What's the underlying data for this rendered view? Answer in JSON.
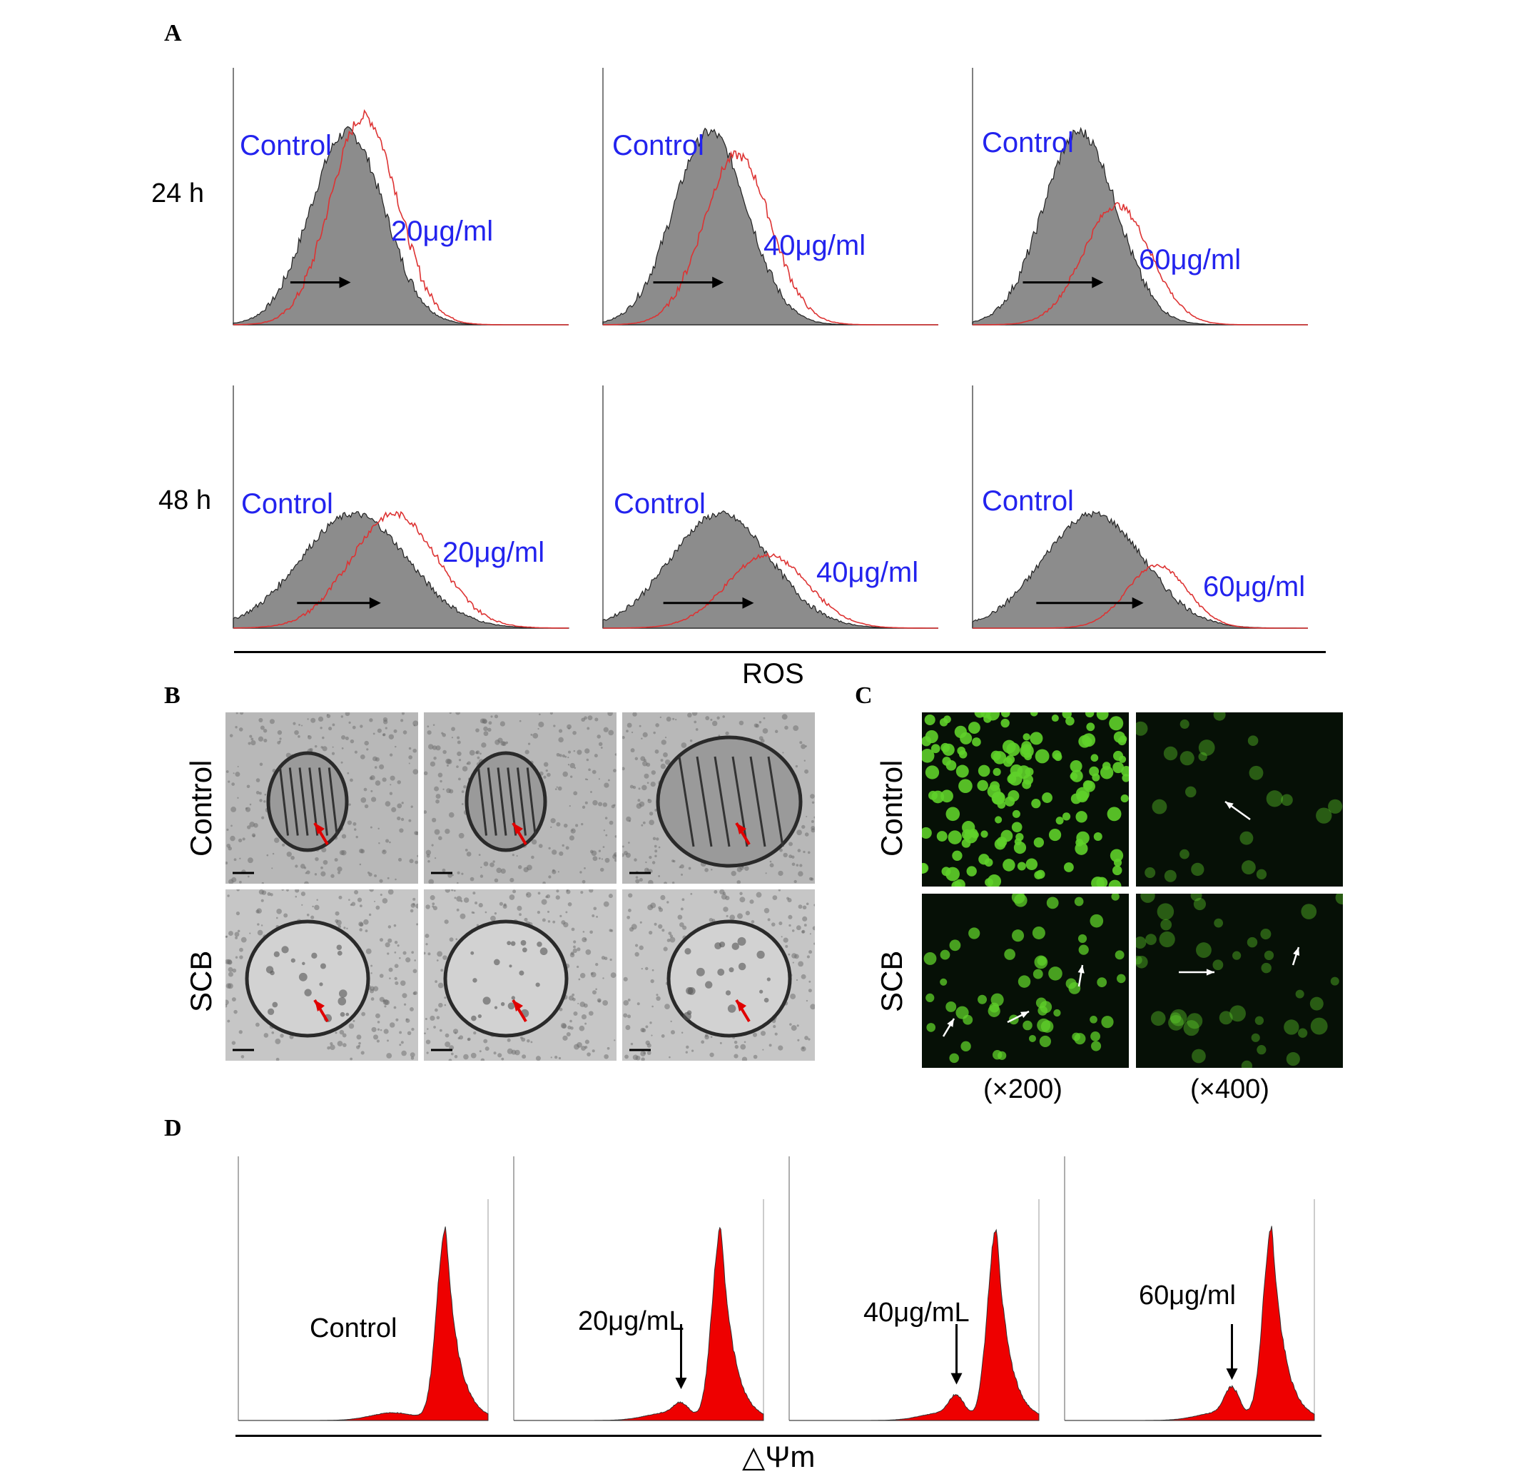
{
  "panel_labels": {
    "a": "A",
    "b": "B",
    "c": "C",
    "d": "D"
  },
  "panel_a": {
    "row_labels": [
      "24 h",
      "48 h"
    ],
    "control_label": "Control",
    "doses": [
      "20μg/ml",
      "40μg/ml",
      "60μg/ml"
    ],
    "axis_label": "ROS"
  },
  "panel_b": {
    "row_labels": [
      "Control",
      "SCB"
    ]
  },
  "panel_c": {
    "row_labels": [
      "Control",
      "SCB"
    ],
    "magnifications": [
      "(×200)",
      "(×400)"
    ]
  },
  "panel_d": {
    "labels": [
      "Control",
      "20μg/mL",
      "40μg/mL",
      "60μg/ml"
    ],
    "axis_label": "△Ψm"
  },
  "colors": {
    "dose_text": "#2323ee",
    "treated_curve": "#d33",
    "control_fill": "#8c8c8c",
    "jc1_fill": "#ee0000",
    "tem_arrow": "#e00000",
    "fluor_cells": "#5fd02a"
  },
  "chart_data": [
    {
      "type": "area",
      "panel": "A",
      "time": "24 h",
      "series": [
        {
          "name": "Control",
          "peak_x": 0.34,
          "spread": 0.11
        },
        {
          "name": "20μg/ml",
          "peak_x": 0.39,
          "spread": 0.1
        }
      ]
    },
    {
      "type": "area",
      "panel": "A",
      "time": "24 h",
      "series": [
        {
          "name": "Control",
          "peak_x": 0.32,
          "spread": 0.11
        },
        {
          "name": "40μg/ml",
          "peak_x": 0.4,
          "spread": 0.1
        }
      ]
    },
    {
      "type": "area",
      "panel": "A",
      "time": "24 h",
      "series": [
        {
          "name": "Control",
          "peak_x": 0.32,
          "spread": 0.11
        },
        {
          "name": "60μg/ml",
          "peak_x": 0.43,
          "spread": 0.1
        }
      ]
    },
    {
      "type": "area",
      "panel": "A",
      "time": "48 h",
      "series": [
        {
          "name": "Control",
          "peak_x": 0.36,
          "spread": 0.16
        },
        {
          "name": "20μg/ml",
          "peak_x": 0.48,
          "spread": 0.13
        }
      ]
    },
    {
      "type": "area",
      "panel": "A",
      "time": "48 h",
      "series": [
        {
          "name": "Control",
          "peak_x": 0.35,
          "spread": 0.15
        },
        {
          "name": "40μg/ml",
          "peak_x": 0.49,
          "spread": 0.12
        }
      ]
    },
    {
      "type": "area",
      "panel": "A",
      "time": "48 h",
      "series": [
        {
          "name": "Control",
          "peak_x": 0.36,
          "spread": 0.15
        },
        {
          "name": "60μg/ml",
          "peak_x": 0.55,
          "spread": 0.09
        }
      ]
    },
    {
      "type": "area",
      "panel": "D",
      "series": [
        {
          "name": "Control",
          "peak_x": 0.83,
          "shoulder": 0.0
        }
      ]
    },
    {
      "type": "area",
      "panel": "D",
      "series": [
        {
          "name": "20μg/mL",
          "peak_x": 0.83,
          "shoulder": 0.06
        }
      ]
    },
    {
      "type": "area",
      "panel": "D",
      "series": [
        {
          "name": "40μg/mL",
          "peak_x": 0.83,
          "shoulder": 0.1
        }
      ]
    },
    {
      "type": "area",
      "panel": "D",
      "series": [
        {
          "name": "60μg/ml",
          "peak_x": 0.83,
          "shoulder": 0.14
        }
      ]
    }
  ]
}
